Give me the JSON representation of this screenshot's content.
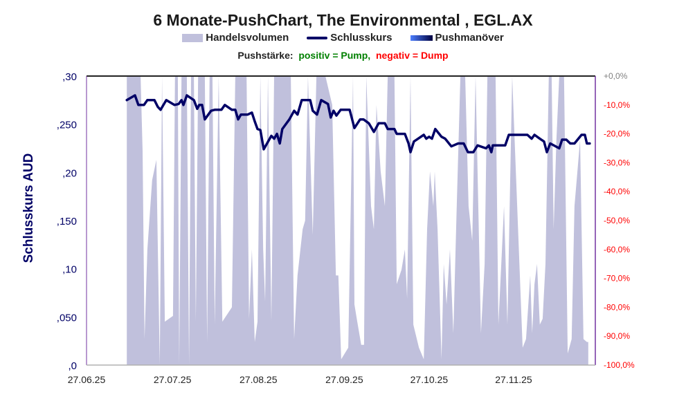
{
  "chart_data": {
    "type": "line",
    "title": "6 Monate-PushChart, The Environmental , EGL.AX",
    "legend": [
      {
        "name": "Handelsvolumen",
        "color": "#c0c0dc"
      },
      {
        "name": "Schlusskurs",
        "color": "#000066"
      },
      {
        "name": "Pushmanöver",
        "color": "#4d7fff"
      }
    ],
    "legend_placement": "top",
    "subtitle": {
      "prefix": "Pushstärke:",
      "positive": "positiv = Pump,",
      "negative": "negativ = Dump",
      "positive_color": "#008000",
      "negative_color": "#ff0000"
    },
    "ylabel": "Schlusskurs AUD",
    "xlabel": "",
    "xlim_days": [
      0,
      180.6
    ],
    "x_ticks": [
      {
        "day": 0,
        "label": "27.06.25"
      },
      {
        "day": 30.5,
        "label": "27.07.25"
      },
      {
        "day": 61,
        "label": "27.08.25"
      },
      {
        "day": 91.5,
        "label": "27.09.25"
      },
      {
        "day": 121.6,
        "label": "27.10.25"
      },
      {
        "day": 151.6,
        "label": "27.11.25"
      }
    ],
    "ylim": [
      0,
      0.3
    ],
    "y_ticks": [
      {
        "value": 0.3,
        "label": ",30"
      },
      {
        "value": 0.25,
        "label": ",250"
      },
      {
        "value": 0.2,
        "label": ",20"
      },
      {
        "value": 0.15,
        "label": ",150"
      },
      {
        "value": 0.1,
        "label": ",10"
      },
      {
        "value": 0.05,
        "label": ",050"
      },
      {
        "value": 0,
        "label": ",0"
      }
    ],
    "y2lim": [
      -100,
      0
    ],
    "y2_ticks": [
      {
        "value": 0,
        "label": "+0,0%",
        "color": "#808080"
      },
      {
        "value": -10,
        "label": "-10,0%",
        "color": "#ff0000"
      },
      {
        "value": -20,
        "label": "-20,0%",
        "color": "#ff0000"
      },
      {
        "value": -30,
        "label": "-30,0%",
        "color": "#ff0000"
      },
      {
        "value": -40,
        "label": "-40,0%",
        "color": "#ff0000"
      },
      {
        "value": -50,
        "label": "-50,0%",
        "color": "#ff0000"
      },
      {
        "value": -60,
        "label": "-60,0%",
        "color": "#ff0000"
      },
      {
        "value": -70,
        "label": "-70,0%",
        "color": "#ff0000"
      },
      {
        "value": -80,
        "label": "-80,0%",
        "color": "#ff0000"
      },
      {
        "value": -90,
        "label": "-90,0%",
        "color": "#ff0000"
      },
      {
        "value": -100,
        "label": "-100,0%",
        "color": "#ff0000"
      }
    ],
    "grid": false,
    "series_price": [
      [
        14.3,
        0.275
      ],
      [
        17.2,
        0.28
      ],
      [
        18.4,
        0.27
      ],
      [
        20.4,
        0.27
      ],
      [
        21.6,
        0.275
      ],
      [
        24.1,
        0.275
      ],
      [
        25.3,
        0.268
      ],
      [
        26.3,
        0.265
      ],
      [
        28.3,
        0.275
      ],
      [
        31.2,
        0.27
      ],
      [
        32.7,
        0.271
      ],
      [
        33.7,
        0.275
      ],
      [
        34.4,
        0.27
      ],
      [
        35.6,
        0.28
      ],
      [
        38.1,
        0.275
      ],
      [
        39.3,
        0.266
      ],
      [
        40.0,
        0.27
      ],
      [
        41.0,
        0.27
      ],
      [
        42.0,
        0.255
      ],
      [
        44.2,
        0.264
      ],
      [
        45.5,
        0.265
      ],
      [
        47.9,
        0.265
      ],
      [
        49.1,
        0.27
      ],
      [
        51.6,
        0.265
      ],
      [
        52.8,
        0.265
      ],
      [
        53.8,
        0.255
      ],
      [
        54.8,
        0.26
      ],
      [
        57.2,
        0.26
      ],
      [
        58.7,
        0.262
      ],
      [
        59.7,
        0.253
      ],
      [
        60.7,
        0.245
      ],
      [
        61.7,
        0.244
      ],
      [
        62.9,
        0.224
      ],
      [
        65.6,
        0.238
      ],
      [
        66.6,
        0.235
      ],
      [
        67.6,
        0.24
      ],
      [
        68.6,
        0.23
      ],
      [
        69.5,
        0.245
      ],
      [
        72.0,
        0.255
      ],
      [
        73.7,
        0.264
      ],
      [
        74.9,
        0.26
      ],
      [
        76.4,
        0.275
      ],
      [
        79.4,
        0.275
      ],
      [
        80.3,
        0.264
      ],
      [
        81.8,
        0.26
      ],
      [
        83.3,
        0.275
      ],
      [
        85.7,
        0.271
      ],
      [
        86.7,
        0.257
      ],
      [
        87.7,
        0.264
      ],
      [
        88.7,
        0.259
      ],
      [
        90.2,
        0.265
      ],
      [
        93.4,
        0.265
      ],
      [
        95.1,
        0.246
      ],
      [
        97.1,
        0.255
      ],
      [
        98.3,
        0.255
      ],
      [
        100.2,
        0.251
      ],
      [
        102.0,
        0.242
      ],
      [
        103.7,
        0.251
      ],
      [
        105.9,
        0.251
      ],
      [
        106.9,
        0.245
      ],
      [
        109.3,
        0.245
      ],
      [
        110.1,
        0.24
      ],
      [
        113.0,
        0.24
      ],
      [
        114.3,
        0.23
      ],
      [
        115.0,
        0.221
      ],
      [
        116.2,
        0.232
      ],
      [
        117.7,
        0.235
      ],
      [
        119.7,
        0.239
      ],
      [
        120.6,
        0.235
      ],
      [
        121.6,
        0.237
      ],
      [
        122.6,
        0.235
      ],
      [
        123.8,
        0.245
      ],
      [
        126.0,
        0.237
      ],
      [
        127.3,
        0.235
      ],
      [
        129.5,
        0.227
      ],
      [
        131.9,
        0.23
      ],
      [
        133.9,
        0.23
      ],
      [
        135.4,
        0.221
      ],
      [
        137.3,
        0.221
      ],
      [
        138.8,
        0.228
      ],
      [
        141.8,
        0.225
      ],
      [
        142.8,
        0.228
      ],
      [
        143.7,
        0.221
      ],
      [
        144.2,
        0.228
      ],
      [
        148.6,
        0.228
      ],
      [
        149.9,
        0.239
      ],
      [
        156.5,
        0.239
      ],
      [
        158.0,
        0.235
      ],
      [
        159.0,
        0.239
      ],
      [
        160.9,
        0.235
      ],
      [
        162.4,
        0.232
      ],
      [
        163.4,
        0.221
      ],
      [
        164.6,
        0.23
      ],
      [
        167.8,
        0.225
      ],
      [
        168.8,
        0.234
      ],
      [
        170.3,
        0.234
      ],
      [
        171.7,
        0.23
      ],
      [
        173.2,
        0.23
      ],
      [
        175.7,
        0.239
      ],
      [
        176.9,
        0.239
      ],
      [
        177.6,
        0.23
      ],
      [
        178.6,
        0.23
      ]
    ],
    "series_volume_relative": [
      [
        14.3,
        0
      ],
      [
        14.3,
        1
      ],
      [
        19.2,
        1
      ],
      [
        19.9,
        0.74
      ],
      [
        20.6,
        0.09
      ],
      [
        21.6,
        0.4
      ],
      [
        23.3,
        0.64
      ],
      [
        24.8,
        0.71
      ],
      [
        26.0,
        0
      ],
      [
        26.8,
        1
      ],
      [
        27.8,
        0.15
      ],
      [
        30.7,
        0.17
      ],
      [
        31.4,
        1
      ],
      [
        32.4,
        1
      ],
      [
        32.9,
        0
      ],
      [
        33.7,
        1
      ],
      [
        35.6,
        1
      ],
      [
        36.4,
        0
      ],
      [
        37.1,
        1
      ],
      [
        38.1,
        1
      ],
      [
        38.8,
        0.15
      ],
      [
        39.6,
        1
      ],
      [
        40.5,
        1
      ],
      [
        42.0,
        1
      ],
      [
        42.8,
        0.08
      ],
      [
        43.7,
        1
      ],
      [
        44.7,
        1
      ],
      [
        45.5,
        0.14
      ],
      [
        46.9,
        1
      ],
      [
        48.2,
        0.15
      ],
      [
        51.6,
        0.2
      ],
      [
        52.8,
        1
      ],
      [
        56.8,
        1
      ],
      [
        57.7,
        0.16
      ],
      [
        58.7,
        0.4
      ],
      [
        59.7,
        0.08
      ],
      [
        60.7,
        0.15
      ],
      [
        61.7,
        1
      ],
      [
        62.7,
        0.4
      ],
      [
        63.4,
        0.22
      ],
      [
        64.4,
        1
      ],
      [
        65.6,
        0.15
      ],
      [
        66.6,
        1
      ],
      [
        68.8,
        1
      ],
      [
        72.5,
        1
      ],
      [
        73.7,
        0.09
      ],
      [
        74.9,
        0.31
      ],
      [
        76.7,
        0.47
      ],
      [
        77.6,
        0.5
      ],
      [
        78.6,
        1
      ],
      [
        80.3,
        0.45
      ],
      [
        81.6,
        1
      ],
      [
        84.8,
        1
      ],
      [
        87.2,
        0.9
      ],
      [
        88.5,
        0.31
      ],
      [
        89.4,
        0.31
      ],
      [
        90.4,
        0.02
      ],
      [
        92.9,
        0.06
      ],
      [
        94.6,
        1
      ],
      [
        95.1,
        0.21
      ],
      [
        96.1,
        0.15
      ],
      [
        97.5,
        0.07
      ],
      [
        98.5,
        0.07
      ],
      [
        99.3,
        1
      ],
      [
        101.0,
        0.55
      ],
      [
        102.0,
        0.47
      ],
      [
        102.9,
        0.9
      ],
      [
        104.4,
        0.67
      ],
      [
        105.9,
        0.55
      ],
      [
        106.9,
        1
      ],
      [
        109.3,
        1
      ],
      [
        110.1,
        0.28
      ],
      [
        111.8,
        0.33
      ],
      [
        113.0,
        0.4
      ],
      [
        113.8,
        0.23
      ],
      [
        115.0,
        1
      ],
      [
        116.0,
        0.14
      ],
      [
        118.0,
        0.06
      ],
      [
        119.7,
        0.02
      ],
      [
        120.9,
        0.47
      ],
      [
        121.9,
        0.67
      ],
      [
        123.1,
        0.55
      ],
      [
        123.6,
        0.67
      ],
      [
        124.6,
        0.47
      ],
      [
        126.0,
        0.02
      ],
      [
        126.8,
        0.35
      ],
      [
        127.8,
        0.21
      ],
      [
        129.0,
        0.4
      ],
      [
        130.2,
        0.11
      ],
      [
        131.4,
        0.55
      ],
      [
        132.7,
        1
      ],
      [
        134.4,
        1
      ],
      [
        135.6,
        0.55
      ],
      [
        136.9,
        0.43
      ],
      [
        138.1,
        1
      ],
      [
        140.0,
        0.11
      ],
      [
        141.3,
        0.35
      ],
      [
        142.3,
        1
      ],
      [
        145.2,
        1
      ],
      [
        146.2,
        0.14
      ],
      [
        148.2,
        0.55
      ],
      [
        149.4,
        0.14
      ],
      [
        151.1,
        1
      ],
      [
        154.8,
        0.06
      ],
      [
        156.0,
        0.09
      ],
      [
        157.5,
        0.31
      ],
      [
        158.2,
        0.11
      ],
      [
        159.0,
        0.28
      ],
      [
        159.9,
        0.35
      ],
      [
        160.9,
        0.14
      ],
      [
        161.9,
        0.16
      ],
      [
        162.9,
        0.35
      ],
      [
        164.1,
        1
      ],
      [
        165.1,
        1
      ],
      [
        165.8,
        0.47
      ],
      [
        166.8,
        0.78
      ],
      [
        167.8,
        1
      ],
      [
        169.5,
        1
      ],
      [
        170.8,
        0.04
      ],
      [
        172.2,
        0.09
      ],
      [
        173.2,
        0.55
      ],
      [
        175.2,
        0.78
      ],
      [
        176.4,
        0.09
      ],
      [
        177.6,
        0.08
      ],
      [
        178.1,
        0.08
      ],
      [
        178.1,
        0
      ]
    ]
  }
}
